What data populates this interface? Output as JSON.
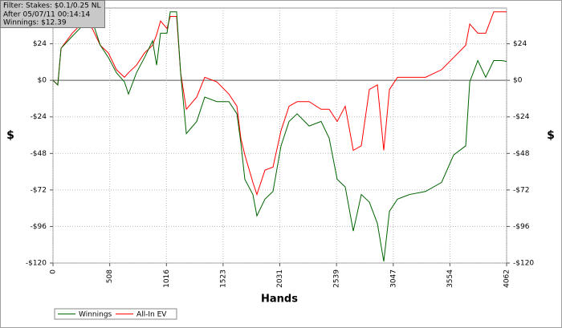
{
  "chart_data": {
    "type": "line",
    "annotations": [
      "Filter: Stakes: $0.1/0.25 NL",
      "After 05/07/11 00:14:14",
      "Winnings: $12.39"
    ],
    "x_label": "Hands",
    "y_label": "$",
    "y2_label": "$",
    "x": [
      0,
      43,
      72,
      173,
      280,
      352,
      424,
      496,
      568,
      640,
      676,
      748,
      820,
      892,
      928,
      963,
      1021,
      1050,
      1107,
      1143,
      1194,
      1287,
      1359,
      1467,
      1575,
      1647,
      1682,
      1718,
      1790,
      1826,
      1898,
      1970,
      2042,
      2114,
      2186,
      2294,
      2401,
      2473,
      2545,
      2617,
      2689,
      2761,
      2833,
      2905,
      2962,
      3013,
      3085,
      3192,
      3336,
      3480,
      3588,
      3696,
      3732,
      3804,
      3875,
      3947,
      4019,
      4062
    ],
    "series": [
      {
        "name": "Winnings",
        "color": "#006400",
        "values": [
          0,
          -3,
          21,
          29,
          37,
          39,
          23,
          15,
          5,
          -1,
          -9,
          5,
          15,
          26,
          10,
          31,
          31,
          45,
          45,
          5,
          -35,
          -27,
          -11,
          -14,
          -14,
          -22,
          -41,
          -65,
          -75,
          -89,
          -78,
          -73,
          -43,
          -27,
          -22,
          -30,
          -27,
          -38,
          -65,
          -70,
          -99,
          -75,
          -80,
          -94,
          -119,
          -86,
          -78,
          -75,
          -73,
          -67,
          -49,
          -43,
          -1,
          13,
          2,
          13,
          13,
          12.39
        ]
      },
      {
        "name": "All-In EV",
        "color": "#ff0000",
        "values": [
          0,
          -3,
          21,
          31,
          39,
          34,
          23,
          18,
          7,
          2,
          5,
          10,
          18,
          23,
          30,
          39,
          34,
          42,
          42,
          5,
          -19,
          -11,
          2,
          -1,
          -9,
          -17,
          -38,
          -49,
          -67,
          -75,
          -59,
          -57,
          -33,
          -17,
          -14,
          -14,
          -19,
          -19,
          -27,
          -17,
          -46,
          -43,
          -6,
          -3,
          -46,
          -6,
          2,
          2,
          2,
          7,
          15,
          23,
          37,
          31,
          31,
          45,
          45,
          45
        ]
      }
    ],
    "xlim": [
      0,
      4062
    ],
    "xticks": [
      0,
      508,
      1016,
      1523,
      2031,
      2539,
      3047,
      3554,
      4062
    ],
    "ylim": [
      -120,
      47.5
    ],
    "yticks": [
      {
        "value": -120,
        "label": "-$120"
      },
      {
        "value": -96,
        "label": "-$96"
      },
      {
        "value": -72,
        "label": "-$72"
      },
      {
        "value": -48,
        "label": "-$48"
      },
      {
        "value": -24,
        "label": "-$24"
      },
      {
        "value": 0,
        "label": "$0"
      },
      {
        "value": 24,
        "label": "$24"
      }
    ],
    "y2lim": [
      -120,
      47.5
    ],
    "y2ticks": [
      {
        "value": -120,
        "label": "-$120"
      },
      {
        "value": -96,
        "label": "-$96"
      },
      {
        "value": -72,
        "label": "-$72"
      },
      {
        "value": -48,
        "label": "-$48"
      },
      {
        "value": -24,
        "label": "-$24"
      },
      {
        "value": 0,
        "label": "$0"
      },
      {
        "value": 24,
        "label": "$24"
      }
    ],
    "grid": true,
    "legend": "bottom-left"
  }
}
